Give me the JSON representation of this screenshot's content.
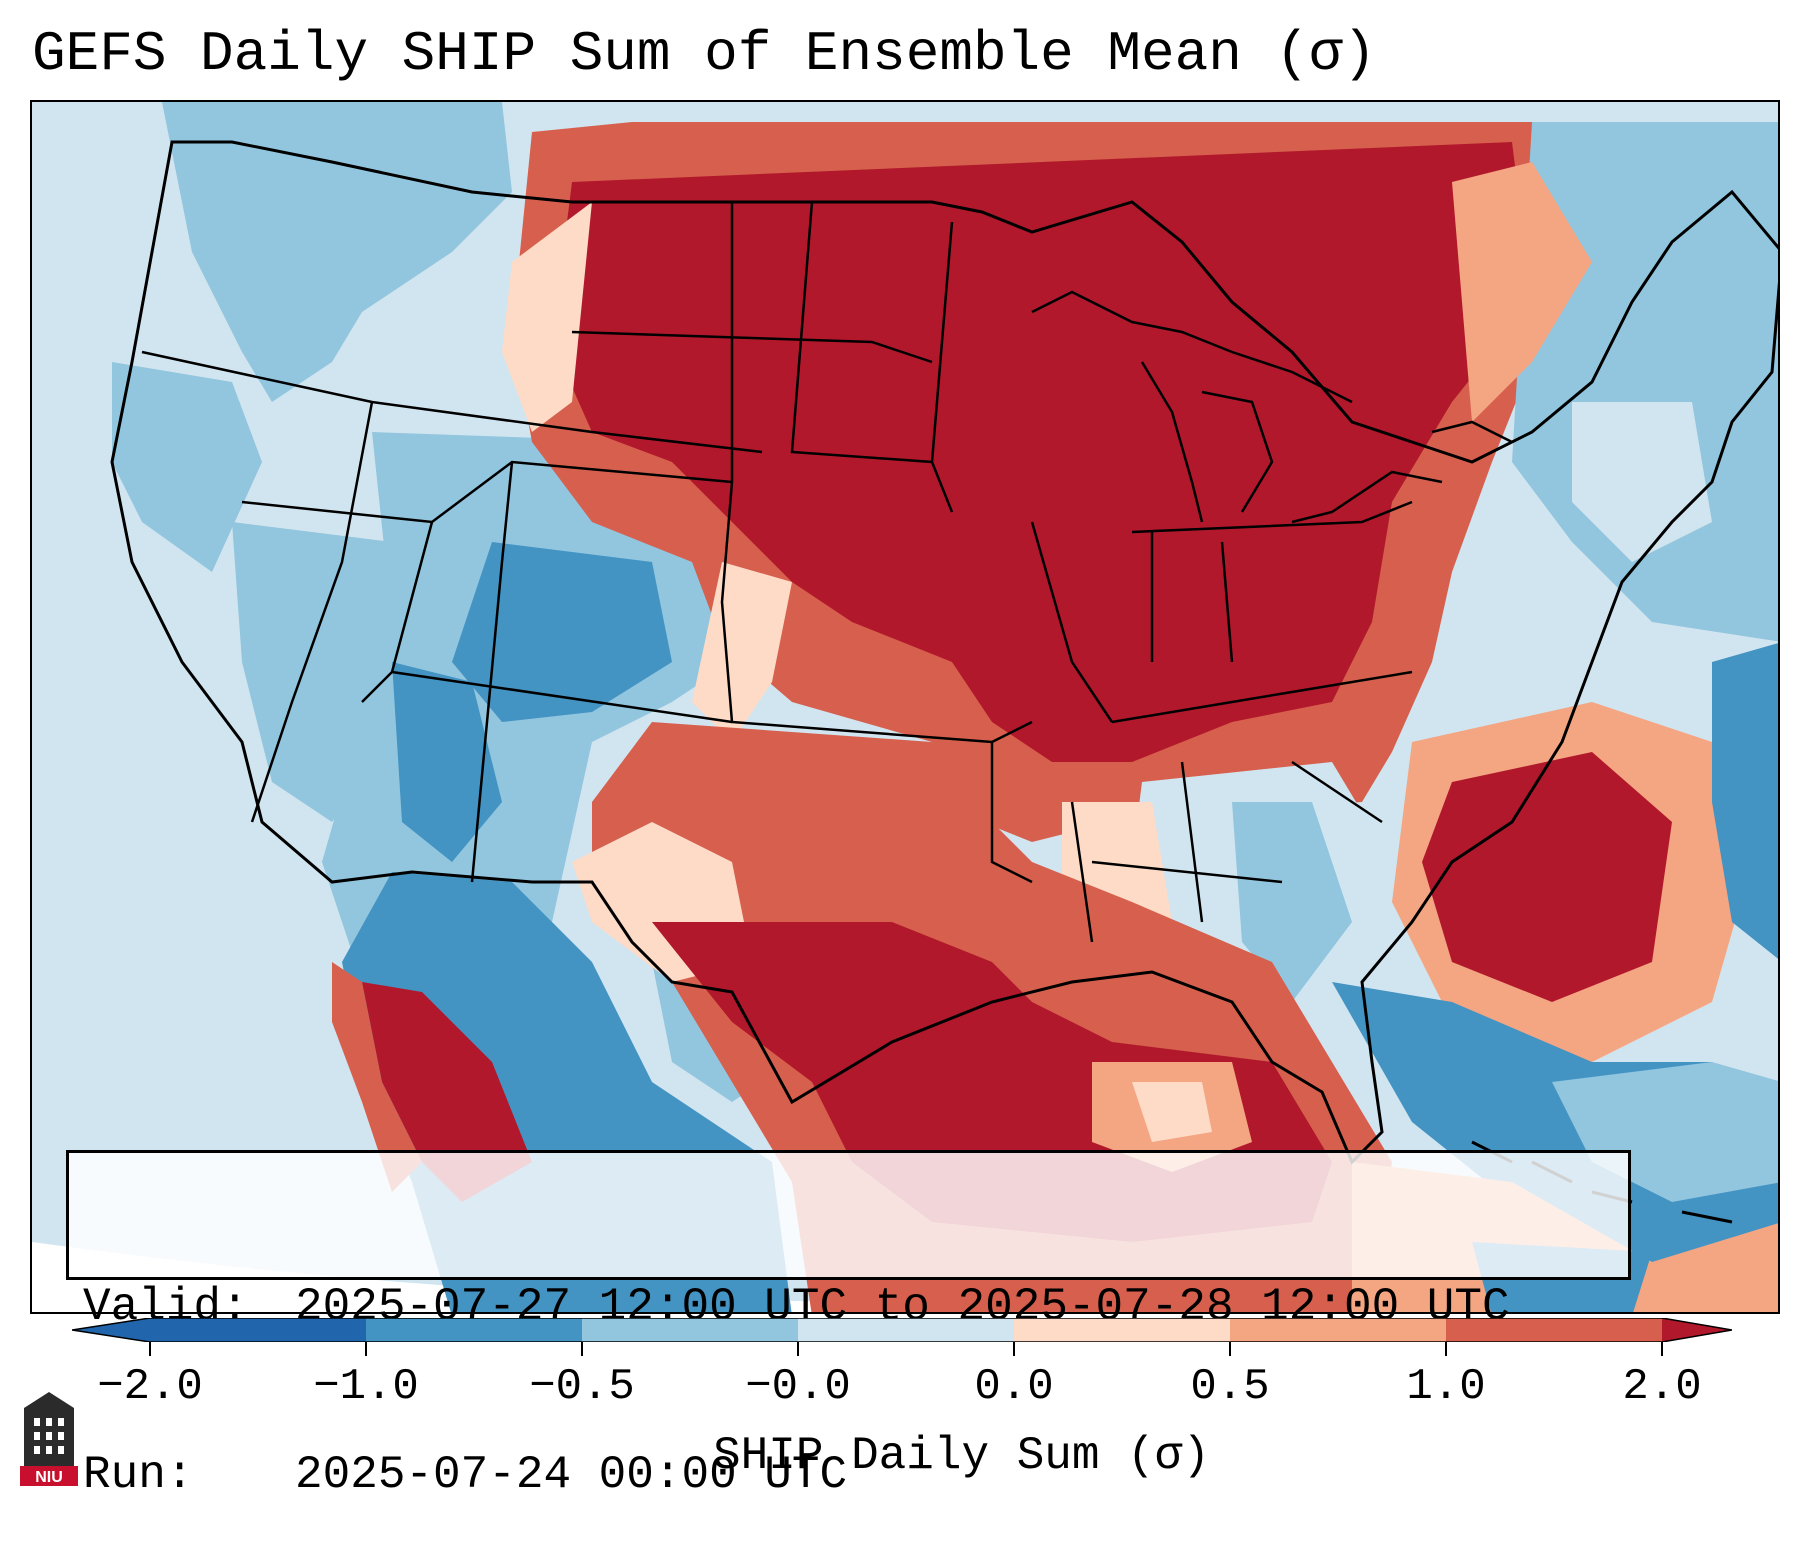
{
  "title": "GEFS Daily SHIP Sum of Ensemble Mean (σ)",
  "info": {
    "valid_label": "Valid:",
    "valid_value": "2025-07-27 12:00 UTC to 2025-07-28 12:00 UTC",
    "run_label": "Run:",
    "run_value": "2025-07-24 00:00 UTC"
  },
  "colorbar": {
    "label": "SHIP Daily Sum (σ)",
    "ticks": [
      "−2.0",
      "−1.0",
      "−0.5",
      "−0.0",
      "0.0",
      "0.5",
      "1.0",
      "2.0"
    ],
    "colors": [
      "#2166ac",
      "#4393c3",
      "#92c5de",
      "#d1e5f0",
      "#ffffff",
      "#fddbc7",
      "#f4a582",
      "#d6604d",
      "#b2182b"
    ]
  },
  "map": {
    "region": "Contiguous United States",
    "ocean_color": "#d1e5f0",
    "border_color": "#000000"
  },
  "logo": {
    "text": "NIU",
    "color": "#c8102e"
  }
}
